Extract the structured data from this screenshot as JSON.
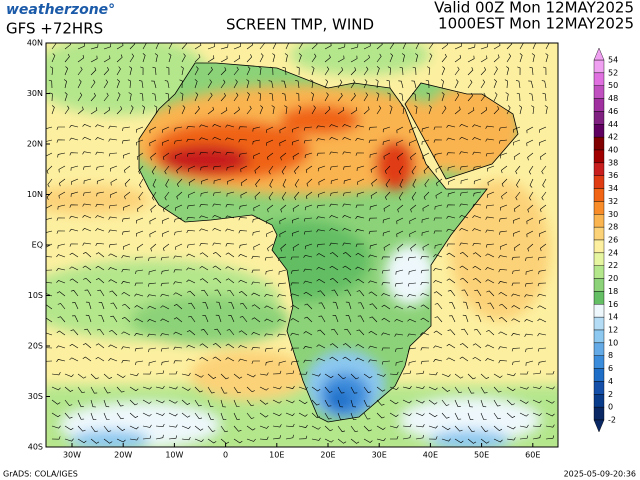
{
  "header": {
    "logo": "weatherzone°",
    "model": "GFS +72HRS",
    "title": "SCREEN TMP, WIND",
    "valid": "Valid 00Z Mon 12MAY2025",
    "local": "1000EST Mon 12MAY2025"
  },
  "map": {
    "lat_labels": [
      "40N",
      "30N",
      "20N",
      "10N",
      "EQ",
      "10S",
      "20S",
      "30S",
      "40S"
    ],
    "lon_labels": [
      "30W",
      "20W",
      "10W",
      "0",
      "10E",
      "20E",
      "30E",
      "40E",
      "50E",
      "60E"
    ]
  },
  "colorbar": {
    "levels": [
      54,
      52,
      50,
      48,
      46,
      44,
      42,
      40,
      38,
      36,
      34,
      32,
      30,
      28,
      26,
      24,
      22,
      20,
      18,
      16,
      14,
      12,
      10,
      8,
      6,
      4,
      2,
      0,
      -2
    ],
    "colors": [
      "#f0a0f0",
      "#e070e0",
      "#c050c0",
      "#a030a0",
      "#802080",
      "#600060",
      "#800000",
      "#a00000",
      "#c81e1e",
      "#e03c14",
      "#f06414",
      "#f88c28",
      "#fab450",
      "#fcd278",
      "#fcf0a0",
      "#e6f5a0",
      "#b4e68c",
      "#8cd278",
      "#64be64",
      "#eef8fc",
      "#b4dcf5",
      "#8cc8f0",
      "#64aae6",
      "#3c8cdc",
      "#1e6ec8",
      "#1450aa",
      "#0a3c8c",
      "#0a2864"
    ]
  },
  "footer": {
    "credit": "GrADS: COLA/IGES",
    "timestamp": "2025-05-09-20:36"
  }
}
